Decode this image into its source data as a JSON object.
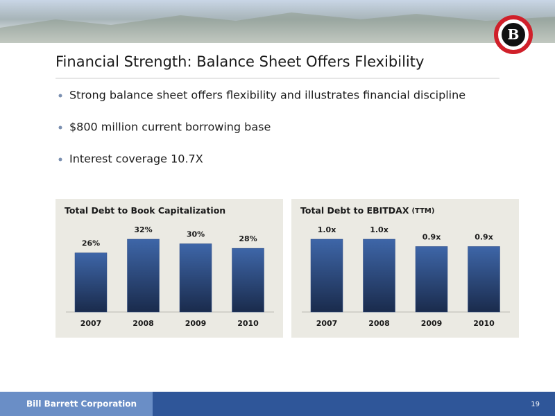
{
  "title": "Financial Strength: Balance Sheet Offers Flexibility",
  "bullets": [
    "Strong balance sheet offers flexibility and illustrates financial discipline",
    "$800 million current borrowing base",
    "Interest coverage 10.7X"
  ],
  "chart_data": [
    {
      "type": "bar",
      "title": "Total Debt to Book Capitalization",
      "categories": [
        "2007",
        "2008",
        "2009",
        "2010"
      ],
      "values": [
        26,
        32,
        30,
        28
      ],
      "value_labels": [
        "26%",
        "32%",
        "30%",
        "28%"
      ],
      "color": "#2e4d85"
    },
    {
      "type": "bar",
      "title": "Total Debt to EBITDAX",
      "subtitle": "(TTM)",
      "categories": [
        "2007",
        "2008",
        "2009",
        "2010"
      ],
      "values": [
        1.0,
        1.0,
        0.9,
        0.9
      ],
      "value_labels": [
        "1.0x",
        "1.0x",
        "0.9x",
        "0.9x"
      ],
      "color": "#2e4d85"
    }
  ],
  "footer": {
    "company": "Bill Barrett Corporation",
    "page": "19"
  }
}
